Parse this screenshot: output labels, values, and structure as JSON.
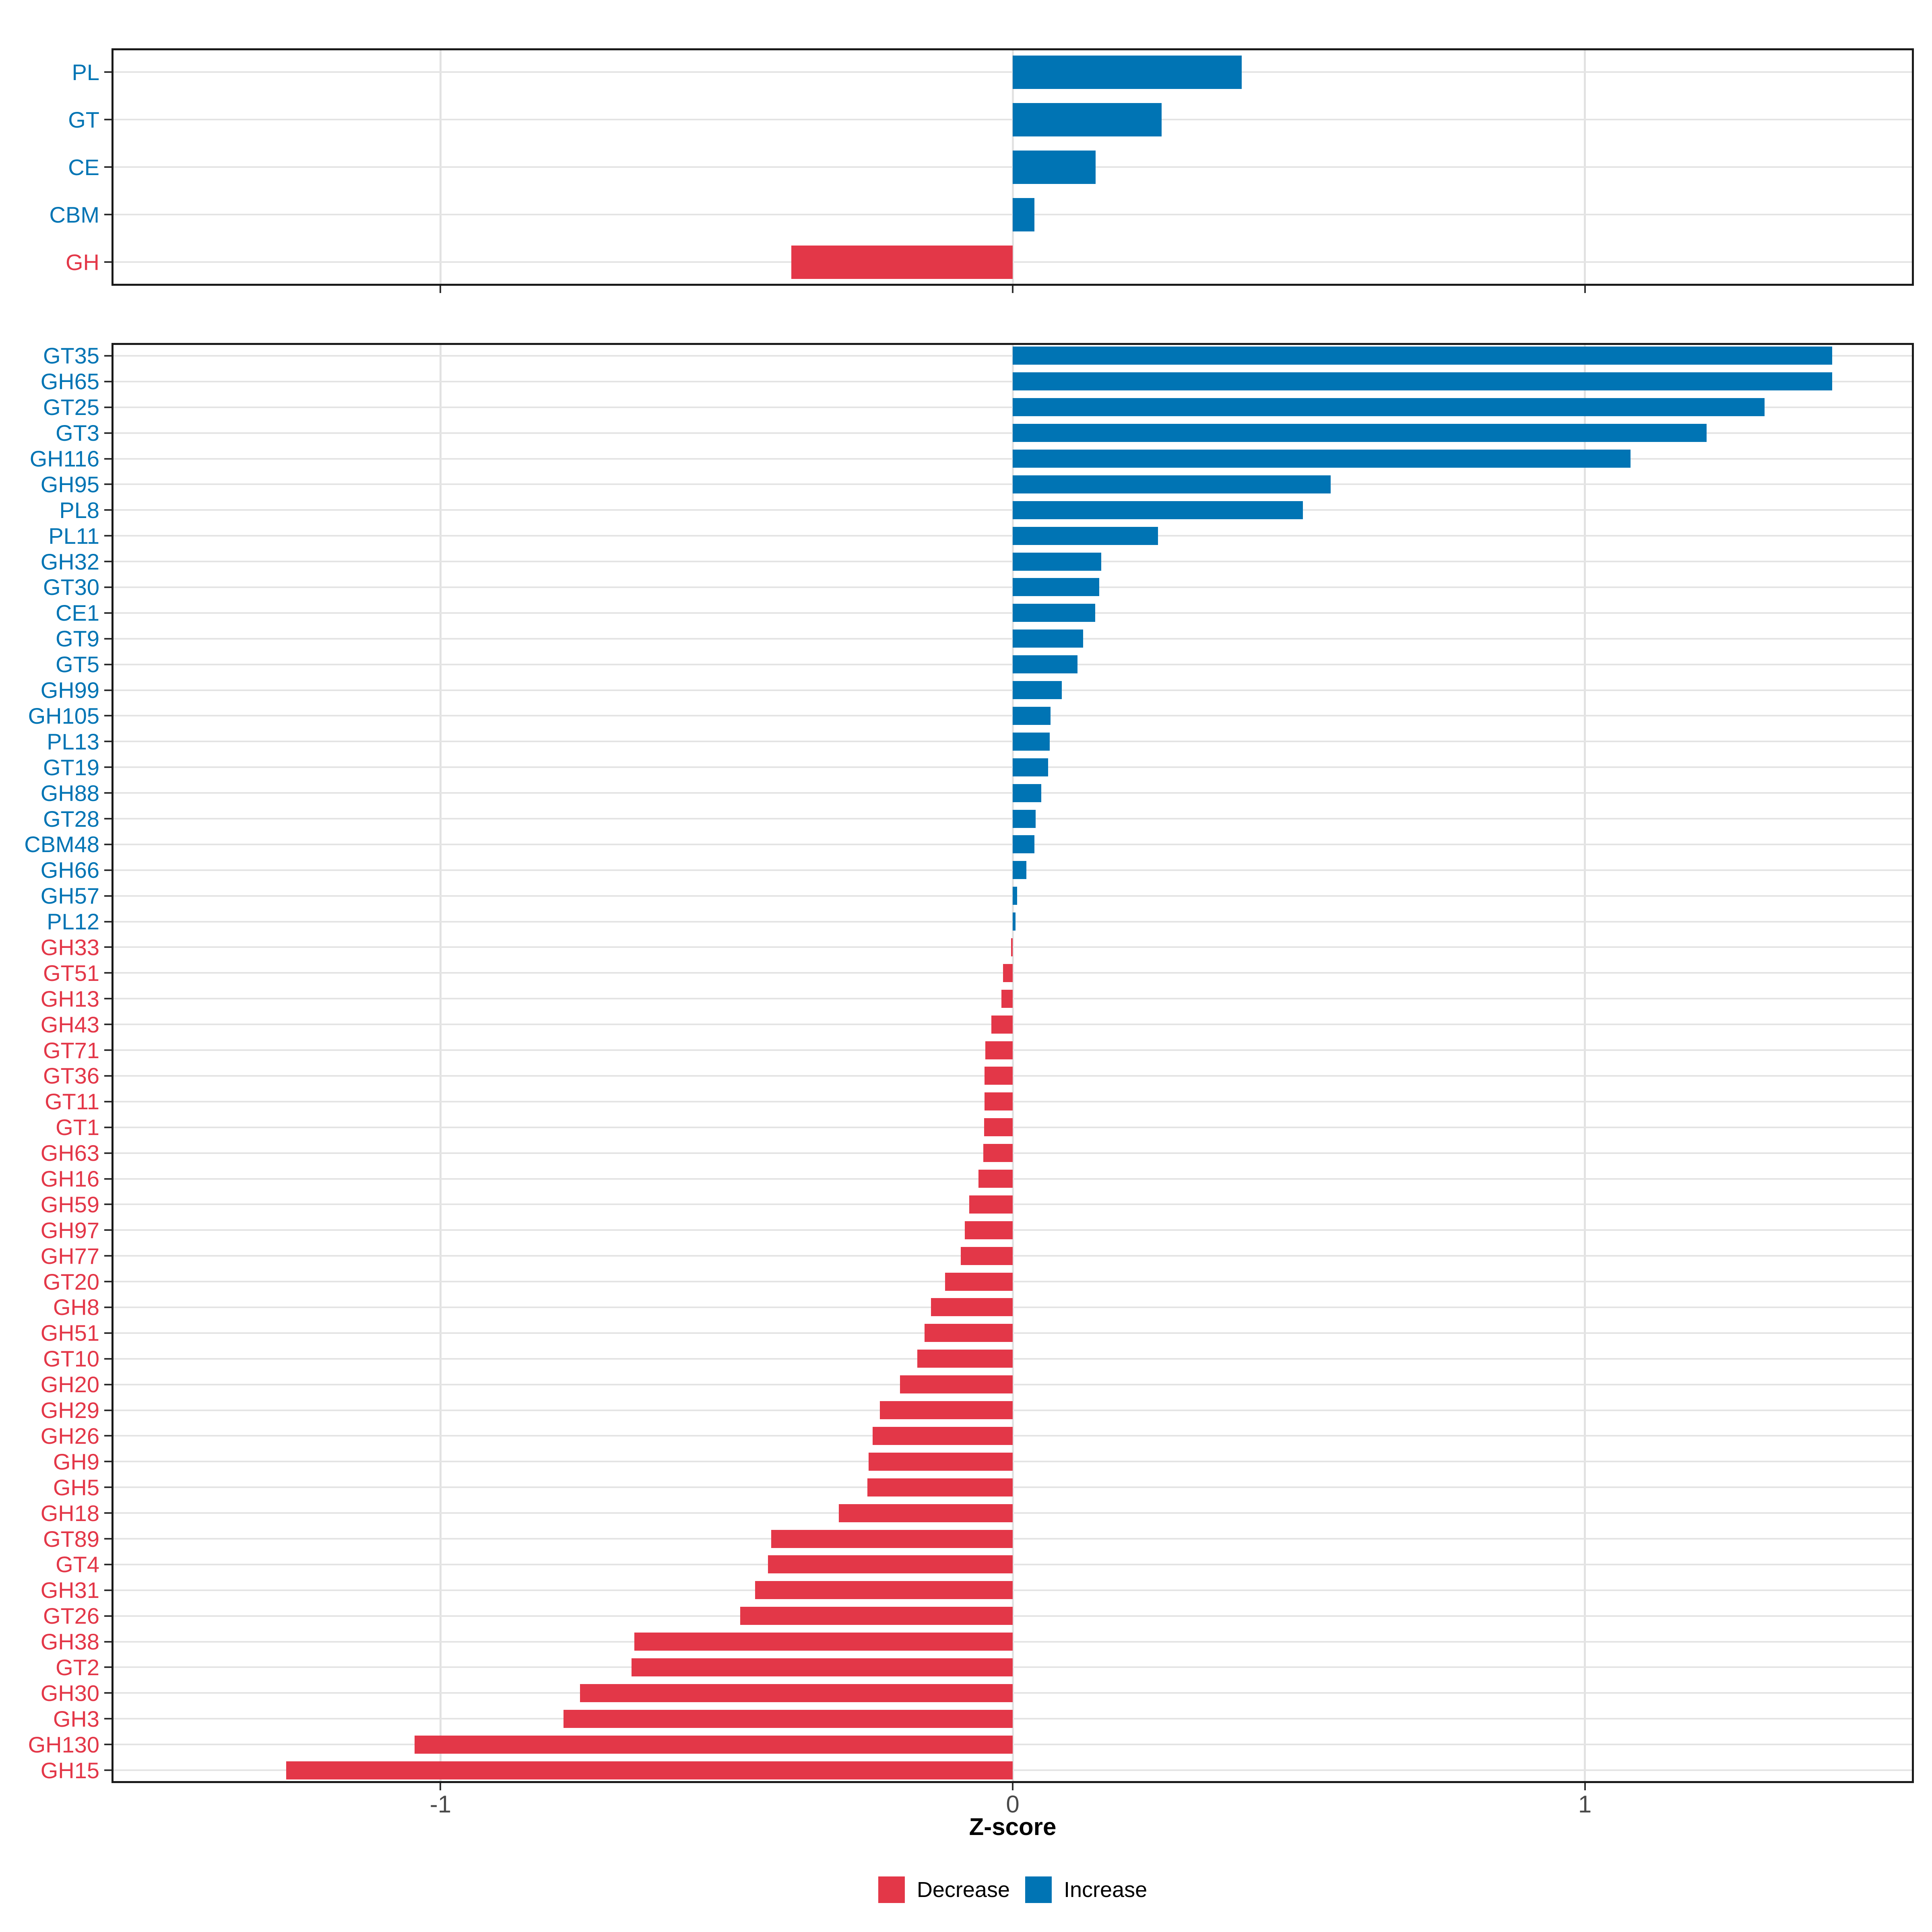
{
  "figure": {
    "x_axis_title": "Z-score"
  },
  "colors": {
    "increase": "#0074B4",
    "decrease": "#E33748",
    "gridline": "#E2E2E2",
    "panel_border": "#1A1A1A",
    "tick": "#2F2F2F",
    "axis_tick_text": "#4A4A4A",
    "background": "#FFFFFF"
  },
  "legend": {
    "decrease_label": "Decrease",
    "increase_label": "Increase"
  },
  "x_axis": {
    "label": "Z-score",
    "min": -1.575,
    "max": 1.575,
    "ticks": [
      {
        "value": -1,
        "label": "-1"
      },
      {
        "value": 0,
        "label": "0"
      },
      {
        "value": 1,
        "label": "1"
      }
    ]
  },
  "chart_data": [
    {
      "type": "bar",
      "orientation": "horizontal",
      "panel": "cazyme-classes",
      "title": "",
      "xlabel": "Z-score",
      "ylabel": "",
      "xlim": [
        -1.575,
        1.575
      ],
      "grid": "major",
      "legend_position": "bottom",
      "legend_entries": [
        "Decrease",
        "Increase"
      ],
      "categories": [
        "PL",
        "GT",
        "CE",
        "CBM",
        "GH"
      ],
      "values": [
        0.4,
        0.26,
        0.145,
        0.038,
        -0.387
      ],
      "directions": [
        "Increase",
        "Increase",
        "Increase",
        "Increase",
        "Decrease"
      ]
    },
    {
      "type": "bar",
      "orientation": "horizontal",
      "panel": "cazyme-families",
      "title": "",
      "xlabel": "Z-score",
      "ylabel": "",
      "xlim": [
        -1.575,
        1.575
      ],
      "grid": "major",
      "legend_position": "bottom",
      "legend_entries": [
        "Decrease",
        "Increase"
      ],
      "categories": [
        "GT35",
        "GH65",
        "GT25",
        "GT3",
        "GH116",
        "GH95",
        "PL8",
        "PL11",
        "GH32",
        "GT30",
        "CE1",
        "GT9",
        "GT5",
        "GH99",
        "GH105",
        "PL13",
        "GT19",
        "GH88",
        "GT28",
        "CBM48",
        "GH66",
        "GH57",
        "PL12",
        "GH33",
        "GT51",
        "GH13",
        "GH43",
        "GT71",
        "GT36",
        "GT11",
        "GT1",
        "GH63",
        "GH16",
        "GH59",
        "GH97",
        "GH77",
        "GT20",
        "GH8",
        "GH51",
        "GT10",
        "GH20",
        "GH29",
        "GH26",
        "GH9",
        "GH5",
        "GH18",
        "GT89",
        "GT4",
        "GH31",
        "GT26",
        "GH38",
        "GT2",
        "GH30",
        "GH3",
        "GH130",
        "GH15"
      ],
      "values": [
        1.432,
        1.432,
        1.314,
        1.213,
        1.08,
        0.556,
        0.507,
        0.254,
        0.155,
        0.151,
        0.144,
        0.123,
        0.113,
        0.086,
        0.066,
        0.065,
        0.062,
        0.05,
        0.04,
        0.038,
        0.024,
        0.008,
        0.005,
        -0.003,
        -0.017,
        -0.02,
        -0.037,
        -0.048,
        -0.049,
        -0.049,
        -0.05,
        -0.051,
        -0.06,
        -0.076,
        -0.084,
        -0.091,
        -0.118,
        -0.143,
        -0.154,
        -0.167,
        -0.197,
        -0.232,
        -0.245,
        -0.252,
        -0.254,
        -0.304,
        -0.422,
        -0.428,
        -0.45,
        -0.476,
        -0.661,
        -0.666,
        -0.756,
        -0.785,
        -1.045,
        -1.27
      ],
      "directions": [
        "Increase",
        "Increase",
        "Increase",
        "Increase",
        "Increase",
        "Increase",
        "Increase",
        "Increase",
        "Increase",
        "Increase",
        "Increase",
        "Increase",
        "Increase",
        "Increase",
        "Increase",
        "Increase",
        "Increase",
        "Increase",
        "Increase",
        "Increase",
        "Increase",
        "Increase",
        "Increase",
        "Decrease",
        "Decrease",
        "Decrease",
        "Decrease",
        "Decrease",
        "Decrease",
        "Decrease",
        "Decrease",
        "Decrease",
        "Decrease",
        "Decrease",
        "Decrease",
        "Decrease",
        "Decrease",
        "Decrease",
        "Decrease",
        "Decrease",
        "Decrease",
        "Decrease",
        "Decrease",
        "Decrease",
        "Decrease",
        "Decrease",
        "Decrease",
        "Decrease",
        "Decrease",
        "Decrease",
        "Decrease",
        "Decrease",
        "Decrease",
        "Decrease",
        "Decrease",
        "Decrease"
      ]
    }
  ]
}
